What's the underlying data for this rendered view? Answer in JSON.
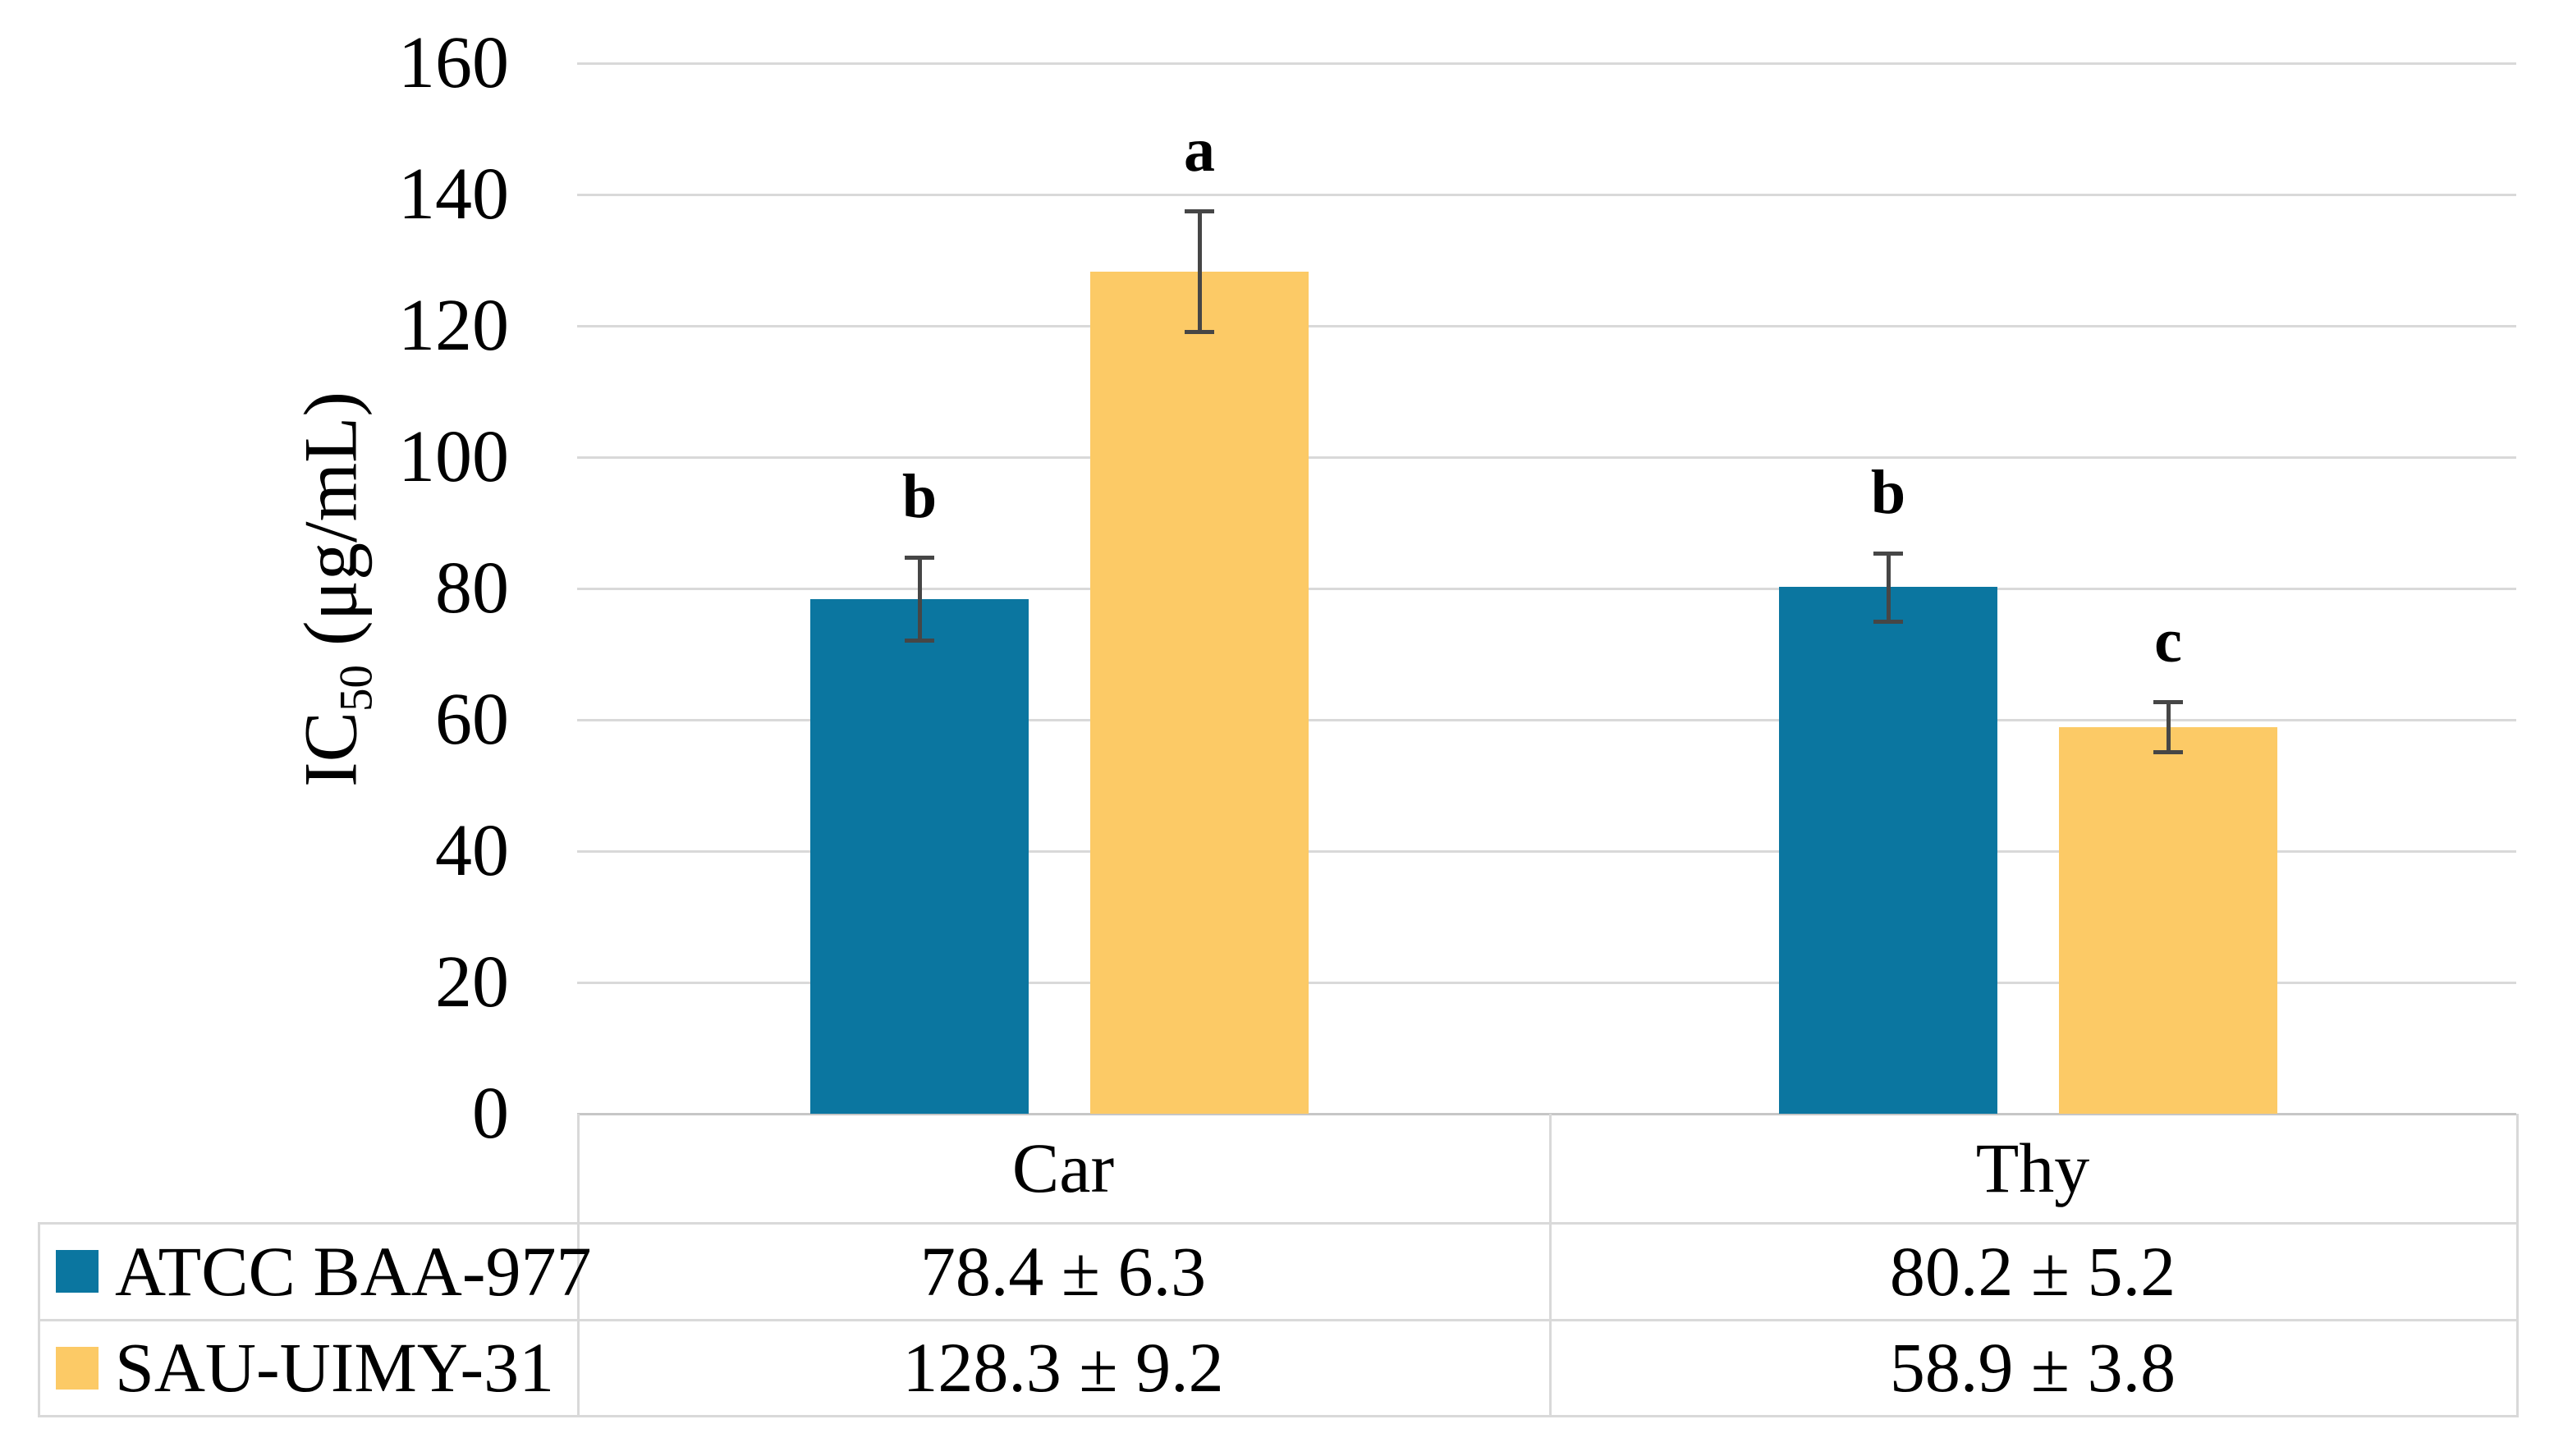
{
  "y_axis": {
    "title_prefix": "IC",
    "title_sub": "50",
    "title_suffix": " (μg/mL)",
    "ticks": [
      "0",
      "20",
      "40",
      "60",
      "80",
      "100",
      "120",
      "140",
      "160"
    ],
    "tick_values": [
      0,
      20,
      40,
      60,
      80,
      100,
      120,
      140,
      160
    ]
  },
  "chart_data": {
    "type": "bar",
    "categories": [
      "Car",
      "Thy"
    ],
    "series": [
      {
        "name": "ATCC BAA-977",
        "color_key": "series_blue",
        "values": [
          78.4,
          80.2
        ],
        "errors": [
          6.3,
          5.2
        ],
        "sig_letters": [
          "b",
          "b"
        ]
      },
      {
        "name": "SAU-UIMY-31",
        "color_key": "series_yellow",
        "values": [
          128.3,
          58.9
        ],
        "errors": [
          9.2,
          3.8
        ],
        "sig_letters": [
          "a",
          "c"
        ]
      }
    ],
    "ylabel": "IC50 (μg/mL)",
    "ylim": [
      0,
      160
    ],
    "ytick_step": 20,
    "grid": true,
    "legend_position": "data-table-left"
  },
  "table": {
    "col_headers": [
      "Car",
      "Thy"
    ],
    "row_headers": [
      "ATCC BAA-977",
      "SAU-UIMY-31"
    ],
    "cells": [
      [
        "78.4 ± 6.3",
        "80.2 ± 5.2"
      ],
      [
        "128.3 ± 9.2",
        "58.9 ± 3.8"
      ]
    ]
  },
  "colors": {
    "series_blue": "#0B76A0",
    "series_yellow": "#FCCA66",
    "gridline": "#D9D9D9",
    "axis_line": "#C6C6C6",
    "error_bar": "#464646",
    "text": "#000000",
    "background": "#FFFFFF"
  }
}
